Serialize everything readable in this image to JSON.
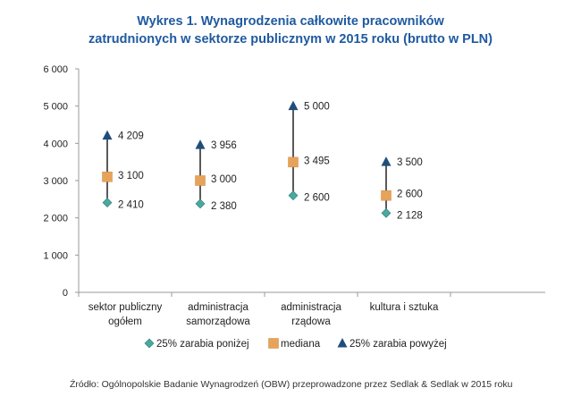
{
  "chart_data": {
    "type": "scatter",
    "title_line1": "Wykres 1. Wynagrodzenia całkowite pracowników",
    "title_line2": "zatrudnionych w sektorze publicznym w 2015 roku (brutto w PLN)",
    "ylim": [
      0,
      6000
    ],
    "yticks": [
      {
        "value": 0,
        "label": "0"
      },
      {
        "value": 1000,
        "label": "1 000"
      },
      {
        "value": 2000,
        "label": "2 000"
      },
      {
        "value": 3000,
        "label": "3 000"
      },
      {
        "value": 4000,
        "label": "4 000"
      },
      {
        "value": 5000,
        "label": "5 000"
      },
      {
        "value": 6000,
        "label": "6 000"
      }
    ],
    "categories": [
      {
        "line1": "sektor publiczny",
        "line2": "ogółem"
      },
      {
        "line1": "administracja",
        "line2": "samorządowa"
      },
      {
        "line1": "administracja",
        "line2": "rządowa"
      },
      {
        "line1": "kultura i sztuka",
        "line2": ""
      }
    ],
    "series": [
      {
        "key": "low",
        "name": "25% zarabia poniżej",
        "color": "#4aa8a0",
        "marker": "diamond",
        "values": [
          2410,
          2380,
          2600,
          2128
        ],
        "labels": [
          "2 410",
          "2 380",
          "2 600",
          "2 128"
        ]
      },
      {
        "key": "median",
        "name": "mediana",
        "color": "#e8a35a",
        "marker": "square",
        "values": [
          3100,
          3000,
          3495,
          2600
        ],
        "labels": [
          "3 100",
          "3 000",
          "3 495",
          "2 600"
        ]
      },
      {
        "key": "high",
        "name": "25% zarabia powyżej",
        "color": "#1f4e79",
        "marker": "triangle",
        "values": [
          4209,
          3956,
          5000,
          3500
        ],
        "labels": [
          "4 209",
          "3 956",
          "5 000",
          "3 500"
        ]
      }
    ],
    "legend_position": "bottom"
  },
  "source": "Źródło: Ogólnopolskie Badanie Wynagrodzeń (OBW) przeprowadzone przez Sedlak & Sedlak w 2015 roku"
}
